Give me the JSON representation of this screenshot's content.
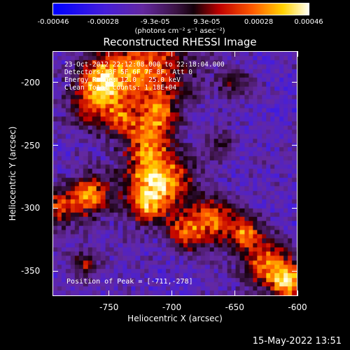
{
  "colorbar": {
    "ticks": [
      "-0.00046",
      "-0.00028",
      "-9.3e-05",
      "9.3e-05",
      "0.00028",
      "0.00046"
    ],
    "units": "(photons cm⁻² s⁻¹ asec⁻²)",
    "range": [
      -0.00046,
      0.00046
    ]
  },
  "info": {
    "time": "23-Oct-2012 22:12:08.000 to 22:18:04.000",
    "detectors": "Detectors: 3F 5F 6F 7F 8F, Att 0",
    "energy": "Energy Range: 12.0 - 25.0 keV",
    "clean": "Clean    Total counts: 1.18E+04",
    "peak": "Position of Peak = [-711,-278]"
  },
  "footer": "15-May-2022 13:51",
  "chart_data": {
    "type": "heatmap",
    "title": "Reconstructed RHESSI Image",
    "xlabel": "Heliocentric X (arcsec)",
    "ylabel": "Heliocentric Y (arcsec)",
    "xlim": [
      -795,
      -600
    ],
    "ylim": [
      -370,
      -175
    ],
    "xticks": [
      "-750",
      "-700",
      "-650",
      "-600"
    ],
    "yticks": [
      "-200",
      "-250",
      "-300",
      "-350"
    ],
    "xtick_values": [
      -750,
      -700,
      -650,
      -600
    ],
    "ytick_values": [
      -200,
      -250,
      -300,
      -350
    ],
    "peak": [
      -711,
      -278
    ],
    "sources": [
      {
        "x": -711,
        "y": -278,
        "v": 1.0,
        "r": 18
      },
      {
        "x": -720,
        "y": -190,
        "v": 0.75,
        "r": 25
      },
      {
        "x": -760,
        "y": -215,
        "v": 0.6,
        "r": 15
      },
      {
        "x": -755,
        "y": -195,
        "v": 0.5,
        "r": 12
      },
      {
        "x": -720,
        "y": -245,
        "v": 0.55,
        "r": 12
      },
      {
        "x": -710,
        "y": -225,
        "v": 0.45,
        "r": 10
      },
      {
        "x": -765,
        "y": -290,
        "v": 0.75,
        "r": 12
      },
      {
        "x": -790,
        "y": -300,
        "v": 0.6,
        "r": 10
      },
      {
        "x": -665,
        "y": -310,
        "v": 0.7,
        "r": 14
      },
      {
        "x": -690,
        "y": -320,
        "v": 0.6,
        "r": 10
      },
      {
        "x": -625,
        "y": -345,
        "v": 0.75,
        "r": 14
      },
      {
        "x": -605,
        "y": -360,
        "v": 0.85,
        "r": 10
      },
      {
        "x": -640,
        "y": -320,
        "v": 0.6,
        "r": 8
      },
      {
        "x": -770,
        "y": -345,
        "v": 0.45,
        "r": 8
      },
      {
        "x": -660,
        "y": -250,
        "v": 0.35,
        "r": 8
      },
      {
        "x": -650,
        "y": -200,
        "v": 0.4,
        "r": 8
      },
      {
        "x": -720,
        "y": -300,
        "v": 0.45,
        "r": 10
      },
      {
        "x": -740,
        "y": -230,
        "v": 0.4,
        "r": 8
      }
    ]
  }
}
